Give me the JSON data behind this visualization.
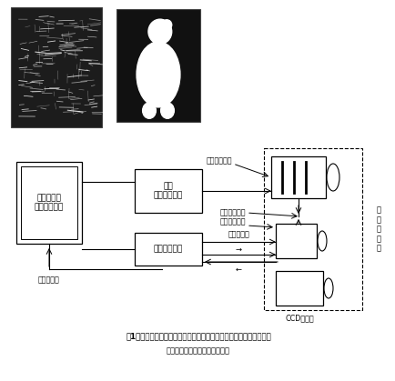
{
  "title_line1": "図1　三次元形態計測装置計測部の機器構成及び鶏の初生雛の計測例",
  "title_line2": "（左はワイヤーフレーム表示）",
  "pc_label": "パーソナル\nコンピュータ",
  "lc_label": "液晶\nコントローラ",
  "ip_label": "画像処理装置",
  "ann_projector": "プロジェクタ",
  "ann_lcd_slit": "液晶スリット",
  "ann_lcd_monitor": "液晶モニター",
  "ann_video": "ビデオ信号",
  "ann_ccd": "CCDカメラ",
  "ann_head": "計\n測\nヘ\nッ\nド"
}
